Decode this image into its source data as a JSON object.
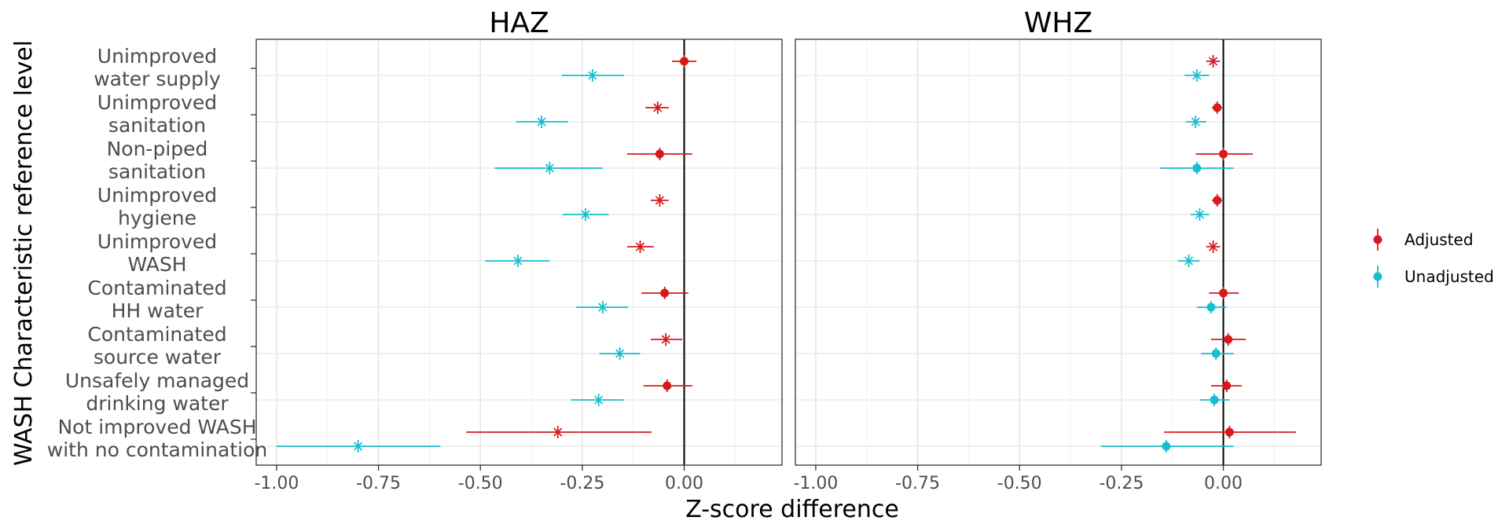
{
  "chart_data": {
    "type": "scatter",
    "subtype": "forest-plot",
    "xlabel": "Z-score difference",
    "ylabel": "WASH Characteristic reference level",
    "xlim": [
      -1.05,
      0.24
    ],
    "xticks": [
      -1.0,
      -0.75,
      -0.5,
      -0.25,
      0.0
    ],
    "xtick_labels": [
      "-1.00",
      "-0.75",
      "-0.50",
      "-0.25",
      "0.00"
    ],
    "grid": true,
    "legend_position": "right",
    "categories": [
      [
        "Unimproved",
        "water supply"
      ],
      [
        "Unimproved",
        "sanitation"
      ],
      [
        "Non-piped",
        "sanitation"
      ],
      [
        "Unimproved",
        "hygiene"
      ],
      [
        "Unimproved",
        "WASH"
      ],
      [
        "Contaminated",
        "HH water"
      ],
      [
        "Contaminated",
        "source water"
      ],
      [
        "Unsafely managed",
        "drinking water"
      ],
      [
        "Not improved WASH",
        "with no contamination"
      ]
    ],
    "series": [
      {
        "name": "Adjusted",
        "color": "#d7191c"
      },
      {
        "name": "Unadjusted",
        "color": "#17becf"
      }
    ],
    "panels": [
      {
        "title": "HAZ",
        "adjusted": [
          {
            "est": 0.0,
            "lo": -0.03,
            "hi": 0.03,
            "marker": "dot"
          },
          {
            "est": -0.065,
            "lo": -0.095,
            "hi": -0.038,
            "marker": "x"
          },
          {
            "est": -0.06,
            "lo": -0.14,
            "hi": 0.02,
            "marker": "dot"
          },
          {
            "est": -0.06,
            "lo": -0.082,
            "hi": -0.038,
            "marker": "x"
          },
          {
            "est": -0.108,
            "lo": -0.14,
            "hi": -0.075,
            "marker": "x"
          },
          {
            "est": -0.048,
            "lo": -0.105,
            "hi": 0.01,
            "marker": "dot"
          },
          {
            "est": -0.045,
            "lo": -0.082,
            "hi": -0.005,
            "marker": "x"
          },
          {
            "est": -0.042,
            "lo": -0.1,
            "hi": 0.02,
            "marker": "dot"
          },
          {
            "est": -0.31,
            "lo": -0.535,
            "hi": -0.08,
            "marker": "x"
          }
        ],
        "unadjusted": [
          {
            "est": -0.225,
            "lo": -0.3,
            "hi": -0.148,
            "marker": "x"
          },
          {
            "est": -0.35,
            "lo": -0.412,
            "hi": -0.285,
            "marker": "x"
          },
          {
            "est": -0.33,
            "lo": -0.465,
            "hi": -0.2,
            "marker": "x"
          },
          {
            "est": -0.242,
            "lo": -0.298,
            "hi": -0.185,
            "marker": "x"
          },
          {
            "est": -0.408,
            "lo": -0.488,
            "hi": -0.33,
            "marker": "x"
          },
          {
            "est": -0.2,
            "lo": -0.265,
            "hi": -0.138,
            "marker": "x"
          },
          {
            "est": -0.158,
            "lo": -0.208,
            "hi": -0.108,
            "marker": "x"
          },
          {
            "est": -0.21,
            "lo": -0.278,
            "hi": -0.148,
            "marker": "x"
          },
          {
            "est": -0.8,
            "lo": -1.0,
            "hi": -0.598,
            "marker": "x"
          }
        ]
      },
      {
        "title": "WHZ",
        "adjusted": [
          {
            "est": -0.025,
            "lo": -0.042,
            "hi": -0.008,
            "marker": "x"
          },
          {
            "est": -0.015,
            "lo": -0.028,
            "hi": -0.003,
            "marker": "dot"
          },
          {
            "est": 0.0,
            "lo": -0.068,
            "hi": 0.072,
            "marker": "dot"
          },
          {
            "est": -0.015,
            "lo": -0.028,
            "hi": -0.003,
            "marker": "dot"
          },
          {
            "est": -0.025,
            "lo": -0.042,
            "hi": -0.008,
            "marker": "x"
          },
          {
            "est": 0.0,
            "lo": -0.035,
            "hi": 0.038,
            "marker": "dot"
          },
          {
            "est": 0.012,
            "lo": -0.03,
            "hi": 0.055,
            "marker": "dot"
          },
          {
            "est": 0.008,
            "lo": -0.03,
            "hi": 0.045,
            "marker": "dot"
          },
          {
            "est": 0.015,
            "lo": -0.145,
            "hi": 0.178,
            "marker": "dot"
          }
        ],
        "unadjusted": [
          {
            "est": -0.065,
            "lo": -0.095,
            "hi": -0.035,
            "marker": "x"
          },
          {
            "est": -0.068,
            "lo": -0.092,
            "hi": -0.042,
            "marker": "x"
          },
          {
            "est": -0.065,
            "lo": -0.155,
            "hi": 0.025,
            "marker": "dot"
          },
          {
            "est": -0.058,
            "lo": -0.08,
            "hi": -0.035,
            "marker": "x"
          },
          {
            "est": -0.085,
            "lo": -0.112,
            "hi": -0.058,
            "marker": "x"
          },
          {
            "est": -0.03,
            "lo": -0.065,
            "hi": 0.008,
            "marker": "dot"
          },
          {
            "est": -0.018,
            "lo": -0.055,
            "hi": 0.025,
            "marker": "dot"
          },
          {
            "est": -0.022,
            "lo": -0.058,
            "hi": 0.015,
            "marker": "dot"
          },
          {
            "est": -0.14,
            "lo": -0.3,
            "hi": 0.025,
            "marker": "dot"
          }
        ]
      }
    ]
  }
}
